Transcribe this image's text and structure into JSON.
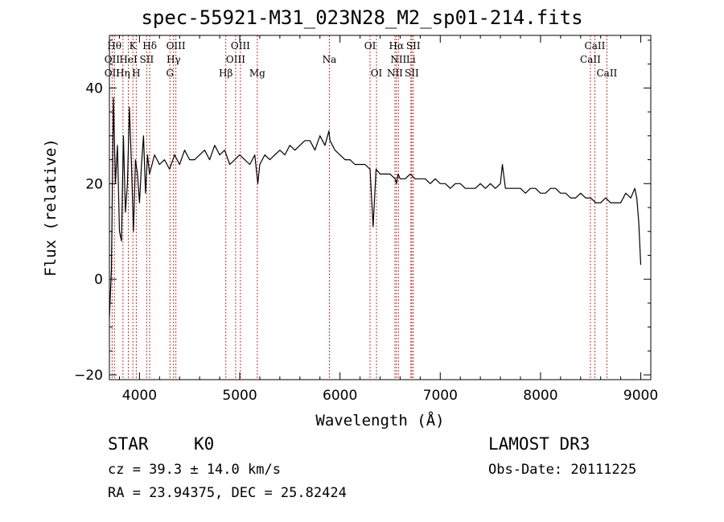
{
  "chart_data": {
    "type": "line",
    "title": "spec-55921-M31_023N28_M2_sp01-214.fits",
    "xlabel": "Wavelength (Å)",
    "ylabel": "Flux (relative)",
    "xlim": [
      3700,
      9100
    ],
    "ylim": [
      -21,
      51
    ],
    "xticks": [
      4000,
      5000,
      6000,
      7000,
      8000,
      9000
    ],
    "yticks": [
      -20,
      0,
      20,
      40
    ],
    "grid": false,
    "series": [
      {
        "name": "flux",
        "color": "#000000",
        "x": [
          3700,
          3720,
          3740,
          3760,
          3780,
          3800,
          3820,
          3840,
          3860,
          3880,
          3900,
          3920,
          3940,
          3960,
          3980,
          4000,
          4020,
          4040,
          4060,
          4080,
          4100,
          4150,
          4200,
          4250,
          4300,
          4350,
          4400,
          4450,
          4500,
          4550,
          4600,
          4650,
          4700,
          4750,
          4800,
          4850,
          4900,
          4950,
          5000,
          5050,
          5100,
          5150,
          5180,
          5200,
          5250,
          5300,
          5350,
          5400,
          5450,
          5500,
          5550,
          5600,
          5650,
          5700,
          5750,
          5800,
          5850,
          5890,
          5900,
          5950,
          6000,
          6050,
          6100,
          6150,
          6200,
          6250,
          6300,
          6330,
          6360,
          6400,
          6450,
          6500,
          6550,
          6563,
          6580,
          6600,
          6650,
          6700,
          6750,
          6800,
          6850,
          6900,
          6950,
          7000,
          7050,
          7100,
          7150,
          7200,
          7250,
          7300,
          7350,
          7400,
          7450,
          7500,
          7550,
          7600,
          7620,
          7650,
          7700,
          7750,
          7800,
          7850,
          7900,
          7950,
          8000,
          8050,
          8100,
          8150,
          8200,
          8250,
          8300,
          8350,
          8400,
          8450,
          8500,
          8550,
          8600,
          8650,
          8700,
          8750,
          8800,
          8850,
          8900,
          8940,
          8960,
          8980,
          9000
        ],
        "values": [
          -8,
          2,
          38,
          20,
          28,
          10,
          8,
          30,
          14,
          20,
          36,
          24,
          10,
          25,
          22,
          16,
          24,
          30,
          18,
          26,
          22,
          26,
          24,
          25,
          23,
          26,
          24,
          27,
          25,
          25,
          26,
          27,
          25,
          28,
          26,
          27,
          24,
          25,
          26,
          25,
          24,
          26,
          20,
          24,
          26,
          25,
          26,
          27,
          26,
          28,
          27,
          28,
          29,
          29,
          27,
          30,
          28,
          31,
          29,
          27,
          26,
          25,
          25,
          24,
          24,
          24,
          23,
          11,
          23,
          22,
          22,
          22,
          21,
          20,
          22,
          21,
          21,
          22,
          21,
          21,
          21,
          20,
          21,
          20,
          20,
          19,
          20,
          20,
          19,
          19,
          19,
          20,
          19,
          20,
          19,
          20,
          24,
          19,
          19,
          19,
          19,
          18,
          19,
          19,
          18,
          18,
          19,
          19,
          18,
          18,
          17,
          17,
          18,
          17,
          17,
          16,
          16,
          17,
          16,
          16,
          16,
          18,
          17,
          19,
          17,
          12,
          3
        ]
      }
    ],
    "lines": [
      {
        "name": "OII",
        "x": 3727
      },
      {
        "name": "Hθ",
        "x": 3750
      },
      {
        "name": "Hη",
        "x": 3835
      },
      {
        "name": "HeI",
        "x": 3889
      },
      {
        "name": "K",
        "x": 3934
      },
      {
        "name": "H",
        "x": 3968
      },
      {
        "name": "SII",
        "x": 4072
      },
      {
        "name": "Hδ",
        "x": 4102
      },
      {
        "name": "G",
        "x": 4304
      },
      {
        "name": "Hγ",
        "x": 4340
      },
      {
        "name": "OIII",
        "x": 4363
      },
      {
        "name": "Hβ",
        "x": 4861
      },
      {
        "name": "OIII",
        "x": 4959
      },
      {
        "name": "OIII",
        "x": 5007
      },
      {
        "name": "Mg",
        "x": 5175
      },
      {
        "name": "Na",
        "x": 5894
      },
      {
        "name": "OI",
        "x": 6300
      },
      {
        "name": "OI",
        "x": 6364
      },
      {
        "name": "NII",
        "x": 6548
      },
      {
        "name": "Hα",
        "x": 6563
      },
      {
        "name": "NII",
        "x": 6583
      },
      {
        "name": "Li",
        "x": 6707
      },
      {
        "name": "SII",
        "x": 6716
      },
      {
        "name": "SII",
        "x": 6731
      },
      {
        "name": "CaII",
        "x": 8498
      },
      {
        "name": "CaII",
        "x": 8542
      },
      {
        "name": "CaII",
        "x": 8662
      }
    ],
    "label_rows": [
      {
        "row": 0,
        "items": [
          [
            "Hθ",
            3750
          ],
          [
            "K",
            3934
          ],
          [
            "Hδ",
            4102
          ],
          [
            "OIII",
            4363
          ],
          [
            "OIII",
            5007
          ],
          [
            "OI",
            6300
          ],
          [
            "Hα",
            6563
          ],
          [
            "SII",
            6731
          ],
          [
            "CaII",
            8542
          ]
        ]
      },
      {
        "row": 1,
        "items": [
          [
            "OII",
            3727
          ],
          [
            "HeI",
            3889
          ],
          [
            "SII",
            4072
          ],
          [
            "Hγ",
            4340
          ],
          [
            "OIII",
            4959
          ],
          [
            "Na",
            5894
          ],
          [
            "NII",
            6583
          ],
          [
            "Li",
            6707
          ],
          [
            "CaII",
            8498
          ]
        ]
      },
      {
        "row": 2,
        "items": [
          [
            "OII",
            3727
          ],
          [
            "Hη",
            3835
          ],
          [
            "H",
            3968
          ],
          [
            "G",
            4304
          ],
          [
            "Hβ",
            4861
          ],
          [
            "Mg",
            5175
          ],
          [
            "OI",
            6364
          ],
          [
            "NII",
            6548
          ],
          [
            "SII",
            6716
          ],
          [
            "CaII",
            8662
          ]
        ]
      }
    ],
    "line_color": "#c0392b",
    "axis_color": "#000000"
  },
  "info": {
    "class": "STAR",
    "subclass": "K0",
    "survey": "LAMOST DR3",
    "cz": "cz = 39.3 ± 14.0 km/s",
    "obs_date": "Obs-Date: 20111225",
    "coords": "RA =  23.94375, DEC =  25.82424"
  }
}
